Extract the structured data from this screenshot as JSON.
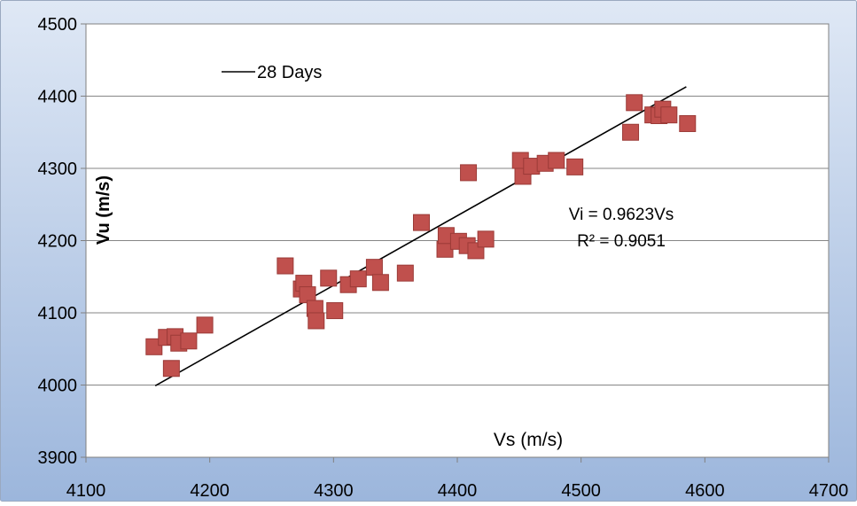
{
  "chart_data": {
    "type": "scatter",
    "title": "",
    "xlabel": "Vs (m/s)",
    "ylabel": "Vu (m/s)",
    "xlim": [
      4100,
      4700
    ],
    "ylim": [
      3900,
      4500
    ],
    "xticks": [
      4100,
      4200,
      4300,
      4400,
      4500,
      4600,
      4700
    ],
    "yticks": [
      3900,
      4000,
      4100,
      4200,
      4300,
      4400,
      4500
    ],
    "grid": "horizontal",
    "legend": {
      "position": "top-left",
      "entries": [
        "28 Days"
      ]
    },
    "annotations": [
      "Vi = 0.9623Vs",
      "R² = 0.9051"
    ],
    "colors": {
      "marker": "#c0504d",
      "marker_edge": "#9b3a37",
      "trendline": "#000000",
      "frame_gradient_top": "#dfe8f5",
      "frame_gradient_bottom": "#9cb6dc",
      "gridline": "#868686"
    },
    "series": [
      {
        "marker": "square",
        "x": [
          4155,
          4165,
          4169,
          4172,
          4175,
          4183,
          4196,
          4261,
          4274,
          4276,
          4279,
          4285,
          4286,
          4296,
          4301,
          4312,
          4320,
          4333,
          4338,
          4358,
          4371,
          4390,
          4391,
          4401,
          4408,
          4409,
          4415,
          4423,
          4451,
          4453,
          4460,
          4471,
          4480,
          4495,
          4540,
          4543,
          4558,
          4563,
          4566,
          4571,
          4586
        ],
        "y": [
          4053,
          4066,
          4023,
          4067,
          4058,
          4061,
          4083,
          4165,
          4133,
          4141,
          4125,
          4106,
          4089,
          4148,
          4103,
          4139,
          4147,
          4163,
          4142,
          4155,
          4225,
          4188,
          4207,
          4199,
          4193,
          4294,
          4186,
          4202,
          4311,
          4289,
          4303,
          4307,
          4311,
          4302,
          4350,
          4391,
          4374,
          4373,
          4382,
          4374,
          4362
        ]
      },
      {
        "name": "28 Days",
        "kind": "line",
        "x": [
          4156,
          4585
        ],
        "y": [
          3999,
          4413
        ]
      }
    ]
  }
}
